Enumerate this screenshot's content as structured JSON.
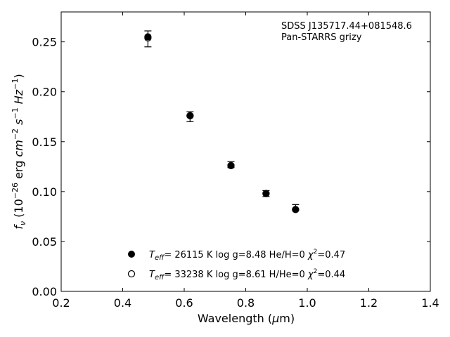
{
  "chart_data": {
    "type": "scatter",
    "xlabel": "Wavelength (μm)",
    "ylabel": "f_ν (10^-26 erg cm^-2 s^-1 Hz^-1)",
    "xlim": [
      0.2,
      1.4
    ],
    "ylim": [
      0.0,
      0.28
    ],
    "x_ticks": [
      "0.2",
      "0.4",
      "0.6",
      "0.8",
      "1.0",
      "1.2",
      "1.4"
    ],
    "y_ticks": [
      "0.00",
      "0.05",
      "0.10",
      "0.15",
      "0.20",
      "0.25"
    ],
    "annotation": [
      "SDSS J135717.44+081548.6",
      "Pan-STARRS grizy"
    ],
    "grid": false,
    "legend_position": "lower-center",
    "observed": {
      "x": [
        0.482,
        0.619,
        0.752,
        0.866,
        0.962
      ],
      "y": [
        0.253,
        0.175,
        0.127,
        0.098,
        0.084
      ],
      "yerr": [
        0.008,
        0.005,
        0.003,
        0.003,
        0.003
      ]
    },
    "series": [
      {
        "name": "T_eff= 26115 K  log g=8.48  He/H=0  χ²=0.47",
        "marker": "filled-circle",
        "x": [
          0.482,
          0.619,
          0.752,
          0.866,
          0.962
        ],
        "y": [
          0.255,
          0.176,
          0.126,
          0.098,
          0.082
        ]
      },
      {
        "name": "T_eff= 33238 K  log g=8.61  H/He=0  χ²=0.44",
        "marker": "open-circle",
        "x": [
          0.482,
          0.619,
          0.752,
          0.866,
          0.962
        ],
        "y": [
          0.254,
          0.176,
          0.126,
          0.098,
          0.082
        ]
      }
    ]
  }
}
